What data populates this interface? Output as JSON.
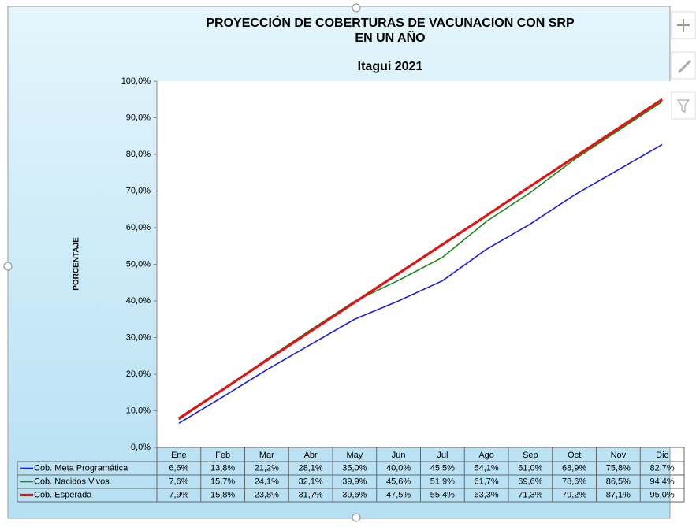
{
  "chart_data": {
    "type": "line",
    "title": [
      "PROYECCIÓN DE COBERTURAS DE VACUNACION CON SRP",
      "EN UN AÑO"
    ],
    "subtitle": "Itagui 2021",
    "y_label": "PORCENTAJE",
    "categories": [
      "Ene",
      "Feb",
      "Mar",
      "Abr",
      "May",
      "Jun",
      "Jul",
      "Ago",
      "Sep",
      "Oct",
      "Nov",
      "Dic"
    ],
    "series": [
      {
        "name": "Cob. Meta Programática",
        "color": "#1a1ae6",
        "width": 1.6,
        "values": [
          6.6,
          13.8,
          21.2,
          28.1,
          35.0,
          40.0,
          45.5,
          54.1,
          61.0,
          68.9,
          75.8,
          82.7
        ],
        "value_labels": [
          "6,6%",
          "13,8%",
          "21,2%",
          "28,1%",
          "35,0%",
          "40,0%",
          "45,5%",
          "54,1%",
          "61,0%",
          "68,9%",
          "75,8%",
          "82,7%"
        ]
      },
      {
        "name": "Cob. Nacidos Vivos",
        "color": "#158a15",
        "width": 1.6,
        "values": [
          7.6,
          15.7,
          24.1,
          32.1,
          39.9,
          45.6,
          51.9,
          61.7,
          69.6,
          78.6,
          86.5,
          94.4
        ],
        "value_labels": [
          "7,6%",
          "15,7%",
          "24,1%",
          "32,1%",
          "39,9%",
          "45,6%",
          "51,9%",
          "61,7%",
          "69,6%",
          "78,6%",
          "86,5%",
          "94,4%"
        ]
      },
      {
        "name": "Cob. Esperada",
        "color": "#e01414",
        "width": 3.2,
        "values": [
          7.9,
          15.8,
          23.8,
          31.7,
          39.6,
          47.5,
          55.4,
          63.3,
          71.3,
          79.2,
          87.1,
          95.0
        ],
        "value_labels": [
          "7,9%",
          "15,8%",
          "23,8%",
          "31,7%",
          "39,6%",
          "47,5%",
          "55,4%",
          "63,3%",
          "71,3%",
          "79,2%",
          "87,1%",
          "95,0%"
        ]
      }
    ],
    "ylim": [
      0,
      100
    ],
    "yticks": [
      {
        "value": 0,
        "label": "0,0%"
      },
      {
        "value": 10,
        "label": "10,0%"
      },
      {
        "value": 20,
        "label": "20,0%"
      },
      {
        "value": 30,
        "label": "30,0%"
      },
      {
        "value": 40,
        "label": "40,0%"
      },
      {
        "value": 50,
        "label": "50,0%"
      },
      {
        "value": 60,
        "label": "60,0%"
      },
      {
        "value": 70,
        "label": "70,0%"
      },
      {
        "value": 80,
        "label": "80,0%"
      },
      {
        "value": 90,
        "label": "90,0%"
      },
      {
        "value": 100,
        "label": "100,0%"
      }
    ],
    "grid": false
  }
}
